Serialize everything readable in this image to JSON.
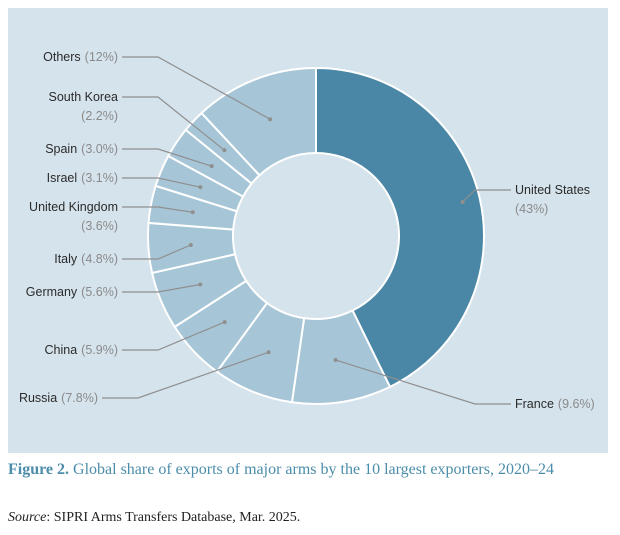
{
  "caption": {
    "figure_label": "Figure 2.",
    "text": "Global share of exports of major arms by the 10 largest exporters, 2020–24"
  },
  "source": {
    "label": "Source",
    "text": ": SIPRI Arms Transfers Database, Mar. 2025."
  },
  "colors": {
    "panel_background": "#d5e3ec",
    "highlight_slice": "#4a87a6",
    "other_slices": "#a6c6d8",
    "slice_border": "#ffffff",
    "leader_line": "#8f8f8f",
    "caption": "#4b8daa"
  },
  "chart_data": {
    "type": "pie",
    "variant": "donut",
    "slices": [
      {
        "label": "United States",
        "value_text": "(43%)",
        "value": 43,
        "highlight": true
      },
      {
        "label": "France",
        "value_text": "(9.6%)",
        "value": 9.6
      },
      {
        "label": "Russia",
        "value_text": "(7.8%)",
        "value": 7.8
      },
      {
        "label": "China",
        "value_text": "(5.9%)",
        "value": 5.9
      },
      {
        "label": "Germany",
        "value_text": "(5.6%)",
        "value": 5.6
      },
      {
        "label": "Italy",
        "value_text": "(4.8%)",
        "value": 4.8
      },
      {
        "label": "United Kingdom",
        "value_text": "(3.6%)",
        "value": 3.6
      },
      {
        "label": "Israel",
        "value_text": "(3.1%)",
        "value": 3.1
      },
      {
        "label": "Spain",
        "value_text": "(3.0%)",
        "value": 3.0
      },
      {
        "label": "South Korea",
        "value_text": "(2.2%)",
        "value": 2.2
      },
      {
        "label": "Others",
        "value_text": "(12%)",
        "value": 12
      }
    ]
  }
}
